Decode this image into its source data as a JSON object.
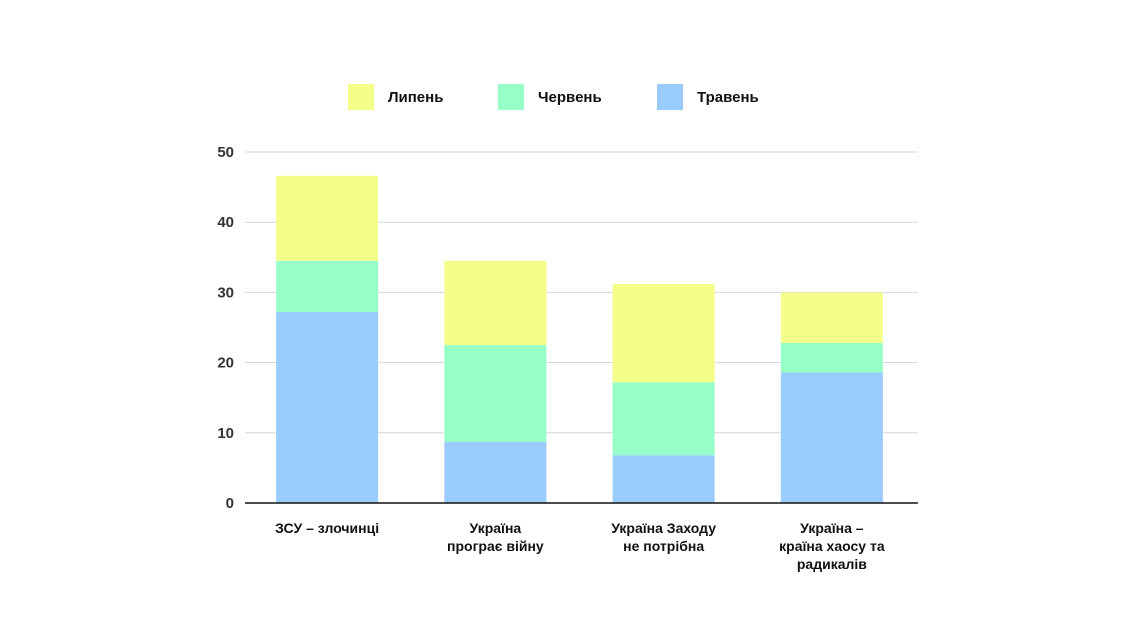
{
  "chart_data": {
    "type": "bar",
    "stacked": true,
    "categories": [
      [
        "ЗСУ – злочинці"
      ],
      [
        "Україна",
        "програє війну"
      ],
      [
        "Україна Заходу",
        "не потрібна"
      ],
      [
        "Україна –",
        "країна хаосу та",
        "радикалів"
      ]
    ],
    "series": [
      {
        "name": "Травень",
        "color": "#99cbfc",
        "values": [
          27.2,
          8.7,
          6.8,
          18.6
        ]
      },
      {
        "name": "Червень",
        "color": "#96ffc8",
        "values": [
          7.3,
          13.8,
          10.4,
          4.2
        ]
      },
      {
        "name": "Липень",
        "color": "#f4ff89",
        "values": [
          12.1,
          12.0,
          14.0,
          7.2
        ]
      }
    ],
    "legend_order": [
      2,
      1,
      0
    ],
    "legend_position": "top",
    "ylim": [
      0,
      50
    ],
    "yticks": [
      0,
      10,
      20,
      30,
      40,
      50
    ],
    "grid": true
  }
}
